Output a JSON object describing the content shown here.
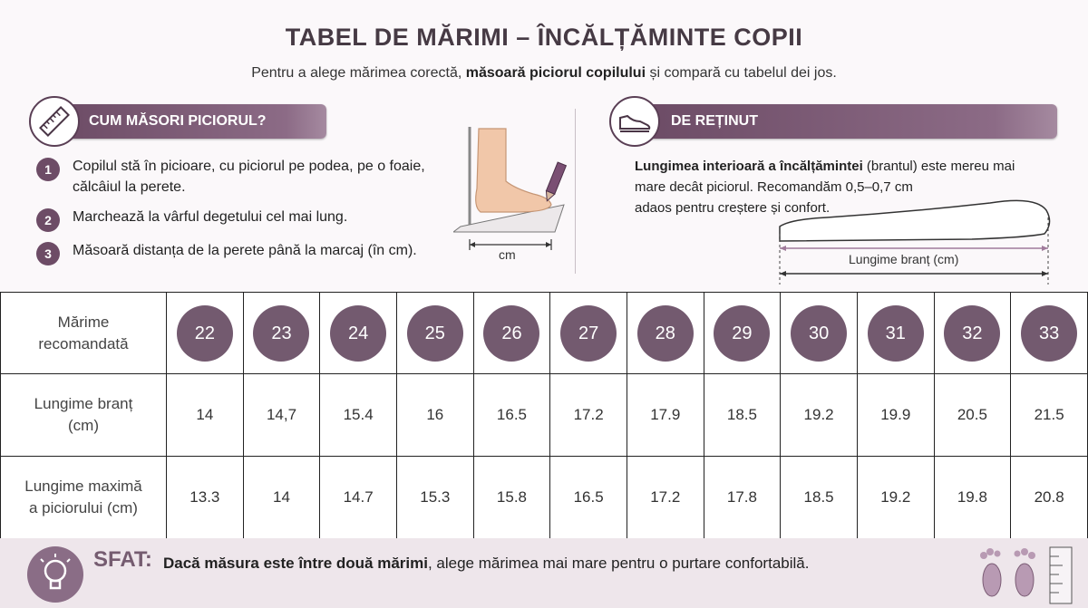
{
  "header": {
    "title": "TABEL DE MĂRIMI – ÎNCĂLȚĂMINTE COPII",
    "subtitle_pre": "Pentru a alege mărimea corectă, ",
    "subtitle_bold": "măsoară piciorul copilului",
    "subtitle_post": " și compară cu tabelul dei jos."
  },
  "how_to": {
    "heading": "CUM MĂSORI PICIORUL?",
    "icon": "ruler-icon",
    "steps": [
      {
        "num": "1",
        "text_line1": "Copilul stă în picioare, cu piciorul pe podea, pe o foaie,",
        "text_line2": "călcâiul la perete."
      },
      {
        "num": "2",
        "text_line1": "Marchează la vârful degetului cel mai lung.",
        "text_line2": ""
      },
      {
        "num": "3",
        "text_line1": "Măsoară distanța de la perete până la marcaj (în cm).",
        "text_line2": ""
      }
    ],
    "illustration_label": "cm"
  },
  "remember": {
    "heading": "DE REȚINUT",
    "icon": "shoe-icon",
    "bold": "Lungimea interioară a încălțămintei",
    "text_line1_rest": " (brantul) este mereu mai",
    "text_line2": "mare decât piciorul. Recomandăm 0,5–0,7 cm",
    "text_line3": "adaos pentru creștere și confort.",
    "insole_label": "Lungime branț (cm)"
  },
  "table": {
    "rows": [
      {
        "label_line1": "Mărime",
        "label_line2": "recomandată",
        "values": [
          "22",
          "23",
          "24",
          "25",
          "26",
          "27",
          "28",
          "29",
          "30",
          "31",
          "32",
          "33"
        ]
      },
      {
        "label_line1": "Lungime branț",
        "label_line2": "(cm)",
        "values": [
          "14",
          "14,7",
          "15.4",
          "16",
          "16.5",
          "17.2",
          "17.9",
          "18.5",
          "19.2",
          "19.9",
          "20.5",
          "21.5"
        ]
      },
      {
        "label_line1": "Lungime maximă",
        "label_line2": "a piciorului (cm)",
        "values": [
          "13.3",
          "14",
          "14.7",
          "15.3",
          "15.8",
          "16.5",
          "17.2",
          "17.8",
          "18.5",
          "19.2",
          "19.8",
          "20.8"
        ]
      }
    ]
  },
  "tip": {
    "label": "SFAT:",
    "icon": "lightbulb-icon",
    "bold": "Dacă măsura este între două mărimi",
    "rest": ", alege mărimea mai mare pentru o purtare confortabilă."
  },
  "colors": {
    "accent": "#6c4b65",
    "circle": "#735a6f",
    "background": "#efe7ec"
  }
}
